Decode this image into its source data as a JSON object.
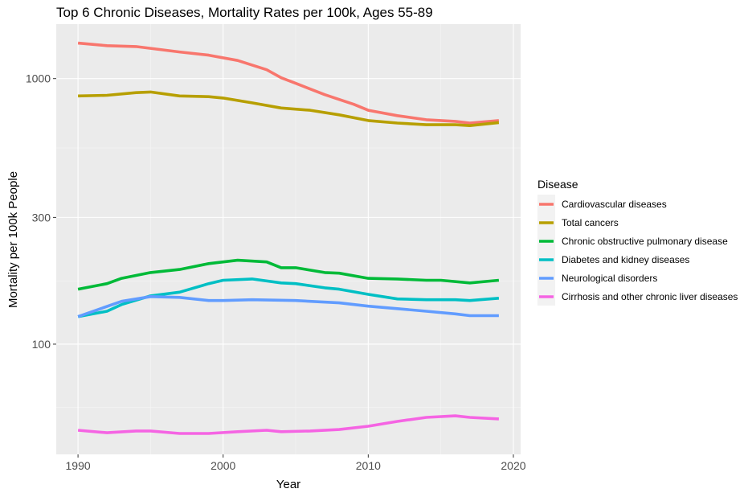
{
  "chart_data": {
    "type": "line",
    "title": "Top 6 Chronic Diseases, Mortality Rates per 100k, Ages 55-89",
    "xlabel": "Year",
    "ylabel": "Mortality per 100k People",
    "xlim": [
      1988.5,
      2020.5
    ],
    "ylim_log10": [
      1.585,
      3.205
    ],
    "yscale": "log10",
    "x_ticks": [
      1990,
      2000,
      2010,
      2020
    ],
    "x_tick_labels": [
      "1990",
      "2000",
      "2010",
      "2020"
    ],
    "y_ticks": [
      100,
      300,
      1000
    ],
    "y_tick_labels": [
      "100",
      "300",
      "1000"
    ],
    "grid": true,
    "legend": {
      "title": "Disease",
      "placement": "right"
    },
    "series": [
      {
        "name": "Cardiovascular diseases",
        "color": "#F8766D",
        "x": [
          1990,
          1992,
          1994,
          1995,
          1997,
          1999,
          2001,
          2003,
          2004,
          2005,
          2007,
          2009,
          2010,
          2012,
          2014,
          2016,
          2017,
          2019
        ],
        "values": [
          1360,
          1330,
          1320,
          1300,
          1260,
          1225,
          1170,
          1080,
          1007,
          960,
          870,
          800,
          760,
          725,
          700,
          690,
          680,
          695
        ]
      },
      {
        "name": "Total cancers",
        "color": "#B79F00",
        "x": [
          1990,
          1992,
          1994,
          1995,
          1997,
          1999,
          2000,
          2002,
          2004,
          2006,
          2008,
          2010,
          2012,
          2014,
          2016,
          2017,
          2019
        ],
        "values": [
          860,
          865,
          885,
          890,
          860,
          855,
          845,
          810,
          775,
          760,
          730,
          695,
          680,
          670,
          670,
          665,
          683
        ]
      },
      {
        "name": "Chronic obstructive pulmonary disease",
        "color": "#00BA38",
        "x": [
          1990,
          1992,
          1993,
          1995,
          1997,
          1999,
          2001,
          2003,
          2004,
          2005,
          2007,
          2008,
          2010,
          2012,
          2014,
          2015,
          2017,
          2019
        ],
        "values": [
          161,
          169,
          177,
          186,
          191,
          201,
          207,
          204,
          194,
          194,
          186,
          185,
          177,
          176,
          174,
          174,
          170,
          174
        ]
      },
      {
        "name": "Diabetes and kidney diseases",
        "color": "#00BFC4",
        "x": [
          1990,
          1992,
          1993,
          1995,
          1997,
          1999,
          2000,
          2002,
          2004,
          2005,
          2007,
          2008,
          2010,
          2012,
          2014,
          2016,
          2017,
          2019
        ],
        "values": [
          127,
          133,
          141,
          152,
          157,
          169,
          174,
          176,
          170,
          169,
          163,
          161,
          154,
          148,
          147,
          147,
          146,
          149
        ]
      },
      {
        "name": "Neurological disorders",
        "color": "#619CFF",
        "x": [
          1990,
          1993,
          1995,
          1997,
          1999,
          2000,
          2002,
          2005,
          2008,
          2010,
          2012,
          2014,
          2016,
          2017,
          2019
        ],
        "values": [
          127,
          145,
          151,
          150,
          146,
          146,
          147,
          146,
          143,
          139,
          136,
          133,
          130,
          128,
          128
        ]
      },
      {
        "name": "Cirrhosis and other chronic liver diseases",
        "color": "#F564E3",
        "x": [
          1990,
          1992,
          1994,
          1995,
          1997,
          1999,
          2001,
          2003,
          2004,
          2006,
          2008,
          2010,
          2012,
          2014,
          2016,
          2017,
          2019
        ],
        "values": [
          47.4,
          46.4,
          47.1,
          47.1,
          46.1,
          46.1,
          46.8,
          47.4,
          46.8,
          47.1,
          47.7,
          49.1,
          51.2,
          53.0,
          53.7,
          53.0,
          52.3
        ]
      }
    ]
  }
}
